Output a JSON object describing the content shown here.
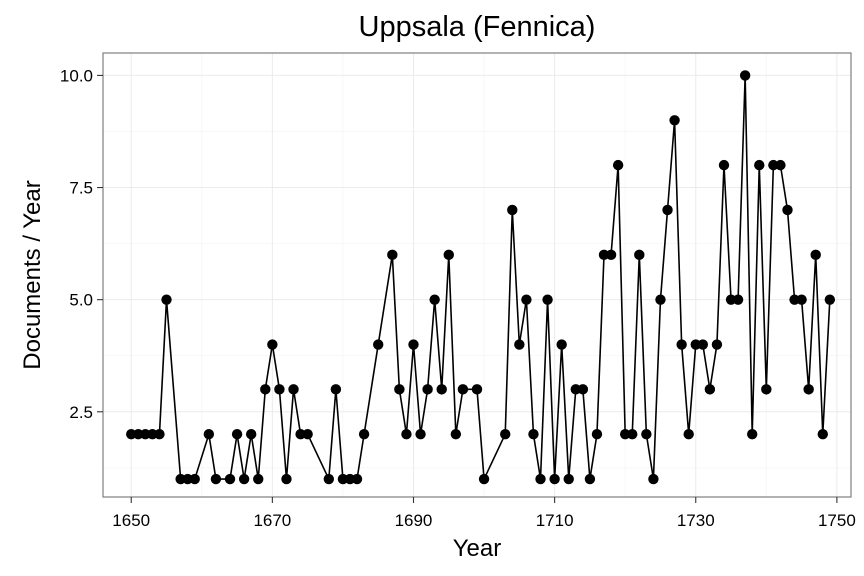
{
  "chart_data": {
    "type": "line",
    "title": "Uppsala (Fennica)",
    "xlabel": "Year",
    "ylabel": "Documents / Year",
    "xlim": [
      1646,
      1752
    ],
    "ylim": [
      0.6,
      10.5
    ],
    "xticks": [
      1650,
      1670,
      1690,
      1710,
      1730,
      1750
    ],
    "xtick_labels": [
      "1650",
      "1670",
      "1690",
      "1710",
      "1730",
      "1750"
    ],
    "yticks": [
      2.5,
      5.0,
      7.5,
      10.0
    ],
    "ytick_labels": [
      "2.5",
      "5.0",
      "7.5",
      "10.0"
    ],
    "grid": true,
    "series": [
      {
        "color": "#000000",
        "points": [
          [
            1650,
            2
          ],
          [
            1651,
            2
          ],
          [
            1652,
            2
          ],
          [
            1653,
            2
          ],
          [
            1654,
            2
          ],
          [
            1655,
            5
          ],
          [
            1657,
            1
          ],
          [
            1658,
            1
          ],
          [
            1659,
            1
          ],
          [
            1661,
            2
          ],
          [
            1662,
            1
          ],
          [
            1664,
            1
          ],
          [
            1665,
            2
          ],
          [
            1666,
            1
          ],
          [
            1667,
            2
          ],
          [
            1668,
            1
          ],
          [
            1669,
            3
          ],
          [
            1670,
            4
          ],
          [
            1671,
            3
          ],
          [
            1672,
            1
          ],
          [
            1673,
            3
          ],
          [
            1674,
            2
          ],
          [
            1675,
            2
          ],
          [
            1678,
            1
          ],
          [
            1679,
            3
          ],
          [
            1680,
            1
          ],
          [
            1681,
            1
          ],
          [
            1682,
            1
          ],
          [
            1683,
            2
          ],
          [
            1685,
            4
          ],
          [
            1687,
            6
          ],
          [
            1688,
            3
          ],
          [
            1689,
            2
          ],
          [
            1690,
            4
          ],
          [
            1691,
            2
          ],
          [
            1692,
            3
          ],
          [
            1693,
            5
          ],
          [
            1694,
            3
          ],
          [
            1695,
            6
          ],
          [
            1696,
            2
          ],
          [
            1697,
            3
          ],
          [
            1699,
            3
          ],
          [
            1700,
            1
          ],
          [
            1703,
            2
          ],
          [
            1704,
            7
          ],
          [
            1705,
            4
          ],
          [
            1706,
            5
          ],
          [
            1707,
            2
          ],
          [
            1708,
            1
          ],
          [
            1709,
            5
          ],
          [
            1710,
            1
          ],
          [
            1711,
            4
          ],
          [
            1712,
            1
          ],
          [
            1713,
            3
          ],
          [
            1714,
            3
          ],
          [
            1715,
            1
          ],
          [
            1716,
            2
          ],
          [
            1717,
            6
          ],
          [
            1718,
            6
          ],
          [
            1719,
            8
          ],
          [
            1720,
            2
          ],
          [
            1721,
            2
          ],
          [
            1722,
            6
          ],
          [
            1723,
            2
          ],
          [
            1724,
            1
          ],
          [
            1725,
            5
          ],
          [
            1726,
            7
          ],
          [
            1727,
            9
          ],
          [
            1728,
            4
          ],
          [
            1729,
            2
          ],
          [
            1730,
            4
          ],
          [
            1731,
            4
          ],
          [
            1732,
            3
          ],
          [
            1733,
            4
          ],
          [
            1734,
            8
          ],
          [
            1735,
            5
          ],
          [
            1736,
            5
          ],
          [
            1737,
            10
          ],
          [
            1738,
            2
          ],
          [
            1739,
            8
          ],
          [
            1740,
            3
          ],
          [
            1741,
            8
          ],
          [
            1742,
            8
          ],
          [
            1743,
            7
          ],
          [
            1744,
            5
          ],
          [
            1745,
            5
          ],
          [
            1746,
            3
          ],
          [
            1747,
            6
          ],
          [
            1748,
            2
          ],
          [
            1749,
            5
          ]
        ]
      }
    ]
  }
}
